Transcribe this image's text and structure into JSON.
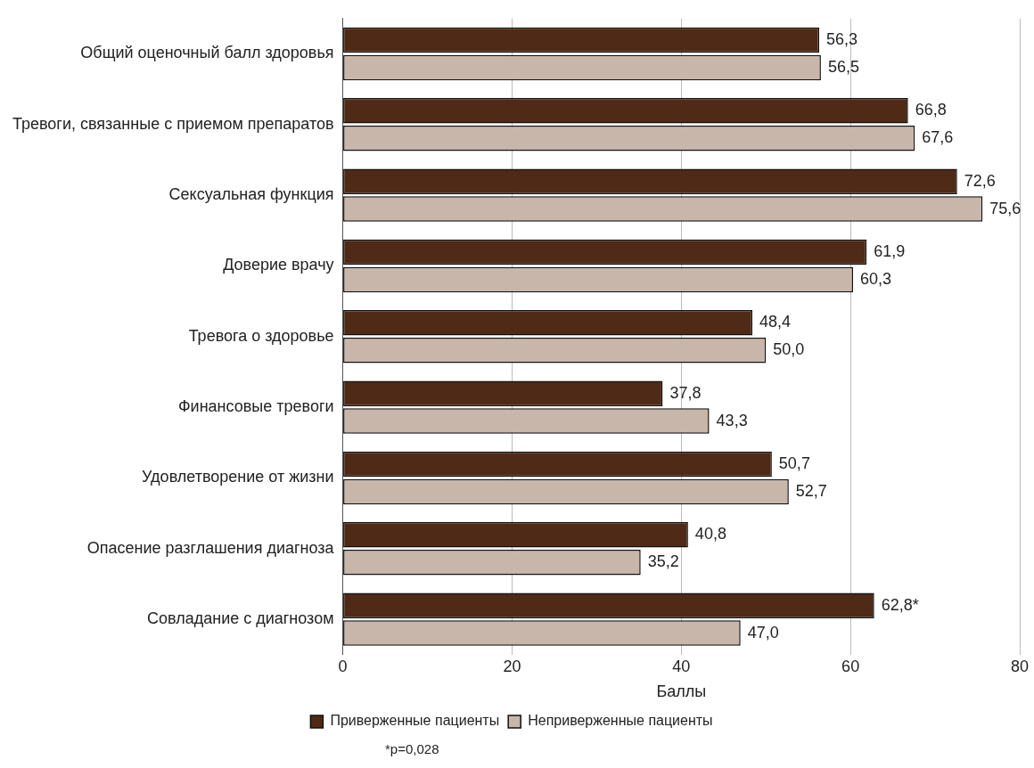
{
  "chart_data": {
    "type": "bar",
    "orientation": "horizontal",
    "categories": [
      "Общий оценочный балл здоровья",
      "Тревоги, связанные с приемом препаратов",
      "Сексуальная функция",
      "Доверие врачу",
      "Тревога о здоровье",
      "Финансовые тревоги",
      "Удовлетворение от жизни",
      "Опасение разглашения диагноза",
      "Совладание с диагнозом"
    ],
    "series": [
      {
        "name": "Приверженные пациенты",
        "color": "#4f2a17",
        "values": [
          56.3,
          66.8,
          72.6,
          61.9,
          48.4,
          37.8,
          50.7,
          40.8,
          62.8
        ],
        "value_labels": [
          "56,3",
          "66,8",
          "72,6",
          "61,9",
          "48,4",
          "37,8",
          "50,7",
          "40,8",
          "62,8*"
        ]
      },
      {
        "name": "Неприверженные пациенты",
        "color": "#c9b6aa",
        "values": [
          56.5,
          67.6,
          75.6,
          60.3,
          50.0,
          43.3,
          52.7,
          35.2,
          47.0
        ],
        "value_labels": [
          "56,5",
          "67,6",
          "75,6",
          "60,3",
          "50,0",
          "43,3",
          "52,7",
          "35,2",
          "47,0"
        ]
      }
    ],
    "xlim": [
      0,
      80
    ],
    "xticks": [
      0,
      20,
      40,
      60,
      80
    ],
    "xlabel": "Баллы",
    "grid": "x",
    "legend": "bottom",
    "annotations": [
      "*p=0,028"
    ]
  }
}
